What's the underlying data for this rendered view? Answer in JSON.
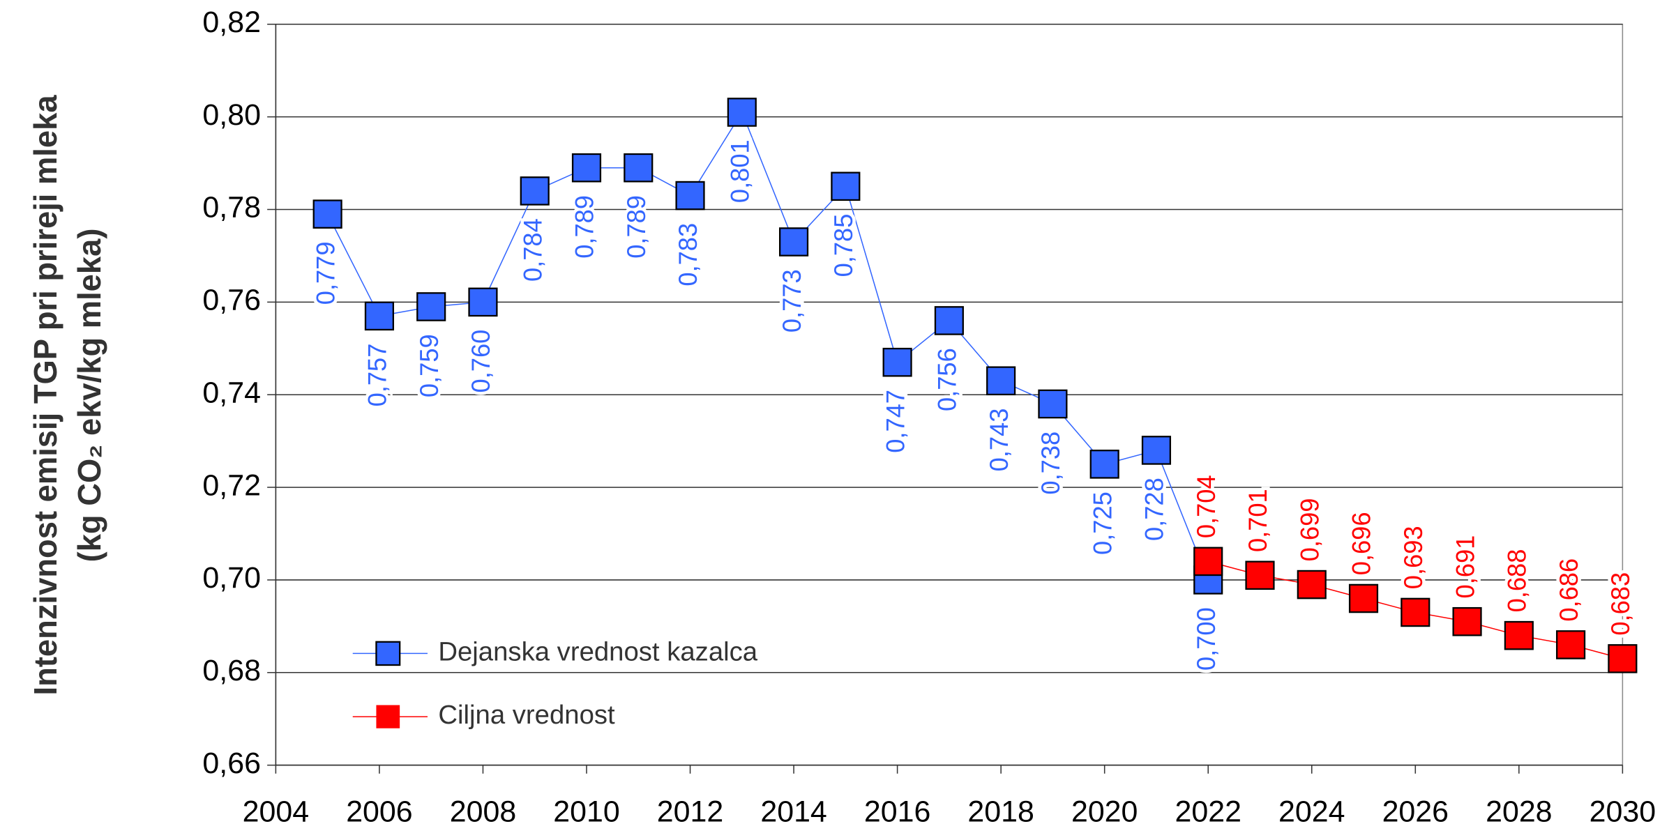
{
  "chart_data": {
    "type": "line",
    "ylabel": [
      "Intenzivnost emisij TGP pri prireji mleka",
      "(kg CO₂ ekv/kg mleka)"
    ],
    "xlim": [
      2004,
      2030
    ],
    "xticks": [
      2004,
      2006,
      2008,
      2010,
      2012,
      2014,
      2016,
      2018,
      2020,
      2022,
      2024,
      2026,
      2028,
      2030
    ],
    "ylim": [
      0.66,
      0.82
    ],
    "yticks": [
      {
        "value": 0.66,
        "label": "0,66"
      },
      {
        "value": 0.68,
        "label": "0,68"
      },
      {
        "value": 0.7,
        "label": "0,70"
      },
      {
        "value": 0.72,
        "label": "0,72"
      },
      {
        "value": 0.74,
        "label": "0,74"
      },
      {
        "value": 0.76,
        "label": "0,76"
      },
      {
        "value": 0.78,
        "label": "0,78"
      },
      {
        "value": 0.8,
        "label": "0,80"
      },
      {
        "value": 0.82,
        "label": "0,82"
      }
    ],
    "grid": true,
    "legend": "lower left",
    "series": [
      {
        "name": "Dejanska vrednost kazalca",
        "color": "#3366ff",
        "label_color": "#3366ff",
        "x": [
          2005,
          2006,
          2007,
          2008,
          2009,
          2010,
          2011,
          2012,
          2013,
          2014,
          2015,
          2016,
          2017,
          2018,
          2019,
          2020,
          2021,
          2022
        ],
        "values": [
          0.779,
          0.757,
          0.759,
          0.76,
          0.784,
          0.789,
          0.789,
          0.783,
          0.801,
          0.773,
          0.785,
          0.747,
          0.756,
          0.743,
          0.738,
          0.725,
          0.728,
          0.7
        ],
        "value_labels": [
          "0,779",
          "0,757",
          "0,759",
          "0,760",
          "0,784",
          "0,789",
          "0,789",
          "0,783",
          "0,801",
          "0,773",
          "0,785",
          "0,747",
          "0,756",
          "0,743",
          "0,738",
          "0,725",
          "0,728",
          "0,700"
        ]
      },
      {
        "name": "Ciljna vrednost",
        "color": "#ff0000",
        "label_color": "#ff0000",
        "x": [
          2022,
          2023,
          2024,
          2025,
          2026,
          2027,
          2028,
          2029,
          2030
        ],
        "values": [
          0.704,
          0.701,
          0.699,
          0.696,
          0.693,
          0.691,
          0.688,
          0.686,
          0.683
        ],
        "value_labels": [
          "0,704",
          "0,701",
          "0,699",
          "0,696",
          "0,693",
          "0,691",
          "0,688",
          "0,686",
          "0,683"
        ]
      }
    ]
  }
}
